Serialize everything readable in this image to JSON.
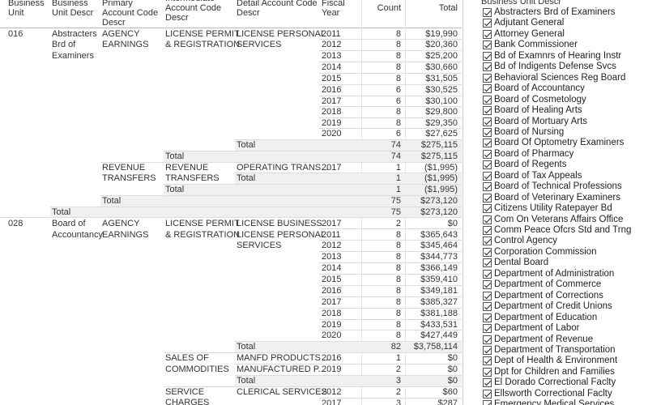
{
  "headers": {
    "bu": "Business Unit",
    "budesc": "Business Unit Descr",
    "primary": "Primary Account Code Descr",
    "intermediate": "Intermediate Account Code Descr",
    "detail": "Detail Account Code Descr",
    "year": "Fiscal Year",
    "count": "Count",
    "total": "Total"
  },
  "rows": {
    "r1": {
      "bu": "016",
      "budesc1": "Abstracters",
      "primary1": "AGENCY",
      "inter1": "LICENSE PERMIT",
      "detail1": "LICENSE PERSONAL",
      "year": "2011",
      "count": "8",
      "total": "$19,990"
    },
    "r2": {
      "budesc2": "Brd of",
      "primary2": "EARNINGS",
      "inter2": "& REGISTRATION",
      "detail2": "SERVICES",
      "year": "2012",
      "count": "8",
      "total": "$20,360"
    },
    "r3": {
      "budesc3": "Examiners",
      "year": "2013",
      "count": "8",
      "total": "$25,200"
    },
    "r4": {
      "year": "2014",
      "count": "8",
      "total": "$30,660"
    },
    "r5": {
      "year": "2015",
      "count": "8",
      "total": "$31,505"
    },
    "r6": {
      "year": "2016",
      "count": "6",
      "total": "$30,525"
    },
    "r7": {
      "year": "2017",
      "count": "6",
      "total": "$30,100"
    },
    "r8": {
      "year": "2018",
      "count": "8",
      "total": "$29,800"
    },
    "r9": {
      "year": "2019",
      "count": "8",
      "total": "$29,350"
    },
    "r10": {
      "year": "2020",
      "count": "6",
      "total": "$27,625"
    },
    "r11": {
      "label": "Total",
      "count": "74",
      "total": "$275,115"
    },
    "r12": {
      "label": "Total",
      "count": "74",
      "total": "$275,115"
    },
    "r13": {
      "primary1": "REVENUE",
      "inter1": "REVENUE",
      "detail1": "OPERATING TRANS...",
      "year": "2017",
      "count": "1",
      "total": "($1,995)"
    },
    "r14": {
      "primary2": "TRANSFERS",
      "inter2": "TRANSFERS",
      "label": "Total",
      "count": "1",
      "total": "($1,995)"
    },
    "r15": {
      "label": "Total",
      "count": "1",
      "total": "($1,995)"
    },
    "r16": {
      "label": "Total",
      "count": "75",
      "total": "$273,120"
    },
    "r17": {
      "label": "Total",
      "count": "75",
      "total": "$273,120"
    },
    "r18": {
      "bu": "028",
      "budesc1": "Board of",
      "primary1": "AGENCY",
      "inter1": "LICENSE PERMIT",
      "detail1": "LICENSE BUSINESS",
      "year": "2017",
      "count": "2",
      "total": "$0"
    },
    "r19": {
      "budesc2": "Accountancy",
      "primary2": "EARNINGS",
      "inter2": "& REGISTRATION",
      "detail1": "LICENSE PERSONAL",
      "year": "2011",
      "count": "8",
      "total": "$365,643"
    },
    "r20": {
      "detail2": "SERVICES",
      "year": "2012",
      "count": "8",
      "total": "$345,464"
    },
    "r21": {
      "year": "2013",
      "count": "8",
      "total": "$344,773"
    },
    "r22": {
      "year": "2014",
      "count": "8",
      "total": "$366,149"
    },
    "r23": {
      "year": "2015",
      "count": "8",
      "total": "$359,410"
    },
    "r24": {
      "year": "2016",
      "count": "8",
      "total": "$349,181"
    },
    "r25": {
      "year": "2017",
      "count": "8",
      "total": "$385,327"
    },
    "r26": {
      "year": "2018",
      "count": "8",
      "total": "$381,188"
    },
    "r27": {
      "year": "2019",
      "count": "8",
      "total": "$433,531"
    },
    "r28": {
      "year": "2020",
      "count": "8",
      "total": "$427,449"
    },
    "r29": {
      "label": "Total",
      "count": "82",
      "total": "$3,758,114"
    },
    "r30": {
      "inter1": "SALES OF",
      "detail1": "MANFD PRODUCTS ...",
      "year": "2016",
      "count": "1",
      "total": "$0"
    },
    "r31": {
      "inter2": "COMMODITIES",
      "detail1": "MANUFACTURED P...",
      "year": "2019",
      "count": "2",
      "total": "$0"
    },
    "r32": {
      "label": "Total",
      "count": "3",
      "total": "$0"
    },
    "r33": {
      "inter1": "SERVICE",
      "detail1": "CLERICAL SERVICES",
      "year": "2012",
      "count": "2",
      "total": "$60"
    },
    "r34": {
      "inter2": "CHARGES",
      "year": "2017",
      "count": "3",
      "total": "$287"
    }
  },
  "filter": {
    "title": "Business Unit Descr",
    "items": [
      "Abstracters Brd of Examiners",
      "Adjutant General",
      "Attorney General",
      "Bank Commissioner",
      "Bd of Examnrs of Hearing Instr",
      "Bd of Indigents Defense Svcs",
      "Behavioral Sciences Reg Board",
      "Board of Accountancy",
      "Board of Cosmetology",
      "Board of Healing Arts",
      "Board of Mortuary Arts",
      "Board of Nursing",
      "Board Of Optometry Examiners",
      "Board of Pharmacy",
      "Board of Regents",
      "Board of Tax Appeals",
      "Board of Technical Professions",
      "Board of Veterinary Examiners",
      "Citizens Utility Ratepayer Bd",
      "Com On Veterans Affairs Office",
      "Comm Peace Ofcrs Std and Trng",
      "Control Agency",
      "Corporation Commission",
      "Dental Board",
      "Department of Administration",
      "Department of Commerce",
      "Department of Corrections",
      "Department of Credit Unions",
      "Department of Education",
      "Department of Labor",
      "Department of Revenue",
      "Department of Transportation",
      "Dept of Health & Environment",
      "Dpt for Children and Families",
      "El Dorado Correctional Faclty",
      "Ellsworth Correctional Faclty",
      "Emergency Medical Services"
    ]
  }
}
